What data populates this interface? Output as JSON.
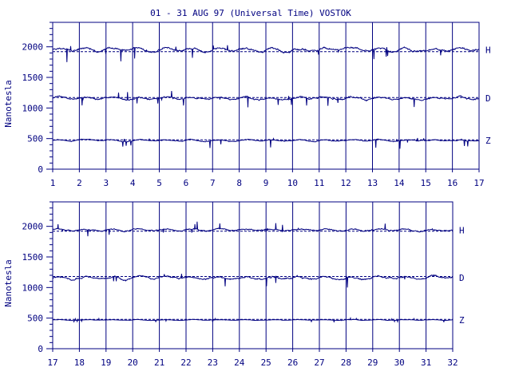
{
  "title": "01 - 31 AUG 97 (Universal Time) VOSTOK",
  "colors": {
    "ink": "#000080",
    "background": "#ffffff"
  },
  "chart_data": [
    {
      "type": "line",
      "title": "01 - 31 AUG 97 (Universal Time) VOSTOK",
      "xlabel": "",
      "ylabel": "Nanotesla",
      "xlim": [
        1,
        17
      ],
      "ylim": [
        0,
        2400
      ],
      "x_tick_labels": [
        "1",
        "2",
        "3",
        "4",
        "5",
        "6",
        "7",
        "8",
        "9",
        "10",
        "11",
        "12",
        "13",
        "14",
        "15",
        "16",
        "17"
      ],
      "y_tick_labels": [
        "0",
        "500",
        "1000",
        "1500",
        "2000"
      ],
      "grid": "vertical lines at each day",
      "series": [
        {
          "name": "H",
          "baseline": 1920,
          "approx_level": 1950,
          "range": [
            1680,
            2050
          ]
        },
        {
          "name": "D",
          "baseline": 1170,
          "approx_level": 1160,
          "range": [
            1000,
            1300
          ]
        },
        {
          "name": "Z",
          "baseline": 480,
          "approx_level": 470,
          "range": [
            330,
            510
          ]
        }
      ]
    },
    {
      "type": "line",
      "title": "",
      "xlabel": "",
      "ylabel": "Nanotesla",
      "xlim": [
        17,
        32
      ],
      "ylim": [
        0,
        2400
      ],
      "x_tick_labels": [
        "17",
        "18",
        "19",
        "20",
        "21",
        "22",
        "23",
        "24",
        "25",
        "26",
        "27",
        "28",
        "29",
        "30",
        "31",
        "32"
      ],
      "y_tick_labels": [
        "0",
        "500",
        "1000",
        "1500",
        "2000"
      ],
      "grid": "vertical lines at each day",
      "series": [
        {
          "name": "H",
          "baseline": 1920,
          "approx_level": 1940,
          "range": [
            1830,
            2080
          ]
        },
        {
          "name": "D",
          "baseline": 1180,
          "approx_level": 1160,
          "range": [
            980,
            1290
          ]
        },
        {
          "name": "Z",
          "baseline": 480,
          "approx_level": 470,
          "range": [
            430,
            500
          ]
        }
      ]
    }
  ]
}
